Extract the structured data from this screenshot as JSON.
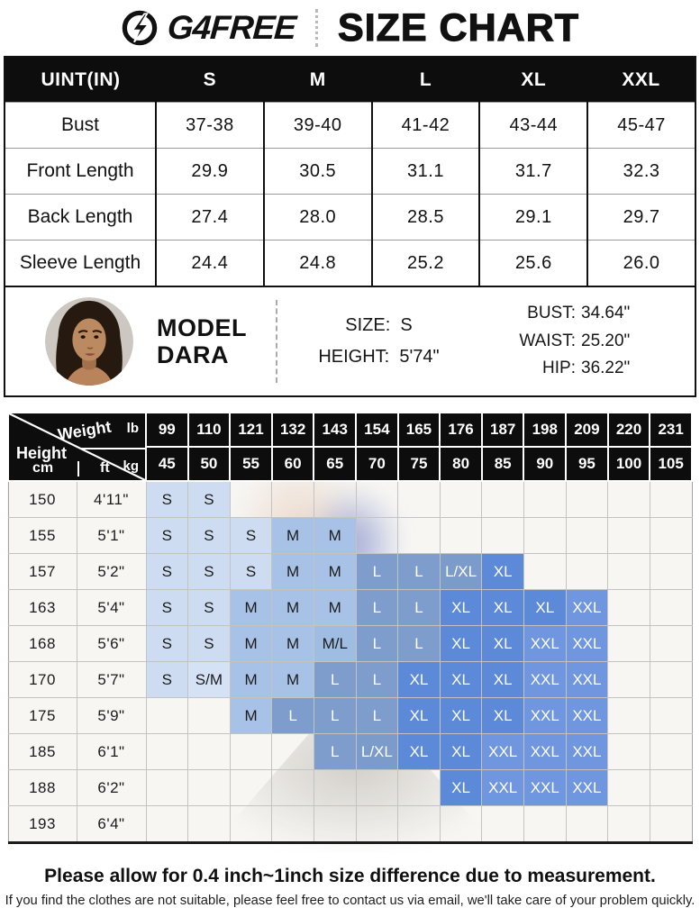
{
  "header": {
    "brand": "G4FREE",
    "title": "SIZE CHART"
  },
  "size_table": {
    "unit_header": "UINT(IN)",
    "size_headers": [
      "S",
      "M",
      "L",
      "XL",
      "XXL"
    ],
    "rows": [
      {
        "label": "Bust",
        "values": [
          "37-38",
          "39-40",
          "41-42",
          "43-44",
          "45-47"
        ]
      },
      {
        "label": "Front Length",
        "values": [
          "29.9",
          "30.5",
          "31.1",
          "31.7",
          "32.3"
        ]
      },
      {
        "label": "Back Length",
        "values": [
          "27.4",
          "28.0",
          "28.5",
          "29.1",
          "29.7"
        ]
      },
      {
        "label": "Sleeve Length",
        "values": [
          "24.4",
          "24.8",
          "25.2",
          "25.6",
          "26.0"
        ]
      }
    ]
  },
  "model_info": {
    "name_line1": "MODEL",
    "name_line2": "DARA",
    "size_label": "SIZE:",
    "size_value": "S",
    "height_label": "HEIGHT:",
    "height_value": "5'74\"",
    "bust_label": "BUST:",
    "bust_value": "34.64\"",
    "waist_label": "WAIST:",
    "waist_value": "25.20\"",
    "hip_label": "HIP:",
    "hip_value": "36.22\""
  },
  "fit_chart": {
    "weight_label": "Weight",
    "height_label": "Height",
    "lb_label": "lb",
    "kg_label": "kg",
    "cm_label": "cm",
    "ft_label": "ft",
    "weights_lb": [
      "99",
      "110",
      "121",
      "132",
      "143",
      "154",
      "165",
      "176",
      "187",
      "198",
      "209",
      "220",
      "231"
    ],
    "weights_kg": [
      "45",
      "50",
      "55",
      "60",
      "65",
      "70",
      "75",
      "80",
      "85",
      "90",
      "95",
      "100",
      "105"
    ],
    "rows": [
      {
        "cm": "150",
        "ft": "4'11\"",
        "cells": [
          "S",
          "S",
          "",
          "",
          "",
          "",
          "",
          "",
          "",
          "",
          "",
          "",
          ""
        ]
      },
      {
        "cm": "155",
        "ft": "5'1\"",
        "cells": [
          "S",
          "S",
          "S",
          "M",
          "M",
          "",
          "",
          "",
          "",
          "",
          "",
          "",
          ""
        ]
      },
      {
        "cm": "157",
        "ft": "5'2\"",
        "cells": [
          "S",
          "S",
          "S",
          "M",
          "M",
          "L",
          "L",
          "L/XL",
          "XL",
          "",
          "",
          "",
          ""
        ]
      },
      {
        "cm": "163",
        "ft": "5'4\"",
        "cells": [
          "S",
          "S",
          "M",
          "M",
          "M",
          "L",
          "L",
          "XL",
          "XL",
          "XL",
          "XXL",
          "",
          ""
        ]
      },
      {
        "cm": "168",
        "ft": "5'6\"",
        "cells": [
          "S",
          "S",
          "M",
          "M",
          "M/L",
          "L",
          "L",
          "XL",
          "XL",
          "XXL",
          "XXL",
          "",
          ""
        ]
      },
      {
        "cm": "170",
        "ft": "5'7\"",
        "cells": [
          "S",
          "S/M",
          "M",
          "M",
          "L",
          "L",
          "XL",
          "XL",
          "XL",
          "XXL",
          "XXL",
          "",
          ""
        ]
      },
      {
        "cm": "175",
        "ft": "5'9\"",
        "cells": [
          "",
          "",
          "M",
          "L",
          "L",
          "L",
          "XL",
          "XL",
          "XL",
          "XXL",
          "XXL",
          "",
          ""
        ]
      },
      {
        "cm": "185",
        "ft": "6'1\"",
        "cells": [
          "",
          "",
          "",
          "",
          "L",
          "L/XL",
          "XL",
          "XL",
          "XXL",
          "XXL",
          "XXL",
          "",
          ""
        ]
      },
      {
        "cm": "188",
        "ft": "6'2\"",
        "cells": [
          "",
          "",
          "",
          "",
          "",
          "",
          "",
          "XL",
          "XXL",
          "XXL",
          "XXL",
          "",
          ""
        ]
      },
      {
        "cm": "193",
        "ft": "6'4\"",
        "cells": [
          "",
          "",
          "",
          "",
          "",
          "",
          "",
          "",
          "",
          "",
          "",
          "",
          ""
        ]
      }
    ]
  },
  "colors": {
    "S": "#cddcf1",
    "S/M": "#d5e2f5",
    "M": "#a7c2e6",
    "M/L": "#9fbce2",
    "L": "#7e9dcc",
    "L/XL": "#7b9bca",
    "XL": "#5c8ad8",
    "XXL": "#6f96de"
  },
  "light_text": [
    "L",
    "L/XL",
    "XL",
    "XXL"
  ],
  "footer": {
    "line1": "Please allow for 0.4 inch~1inch size difference due to measurement.",
    "line2": "If you find the clothes  are not suitable, please feel free to contact us via email, we'll take care of your problem quickly."
  }
}
